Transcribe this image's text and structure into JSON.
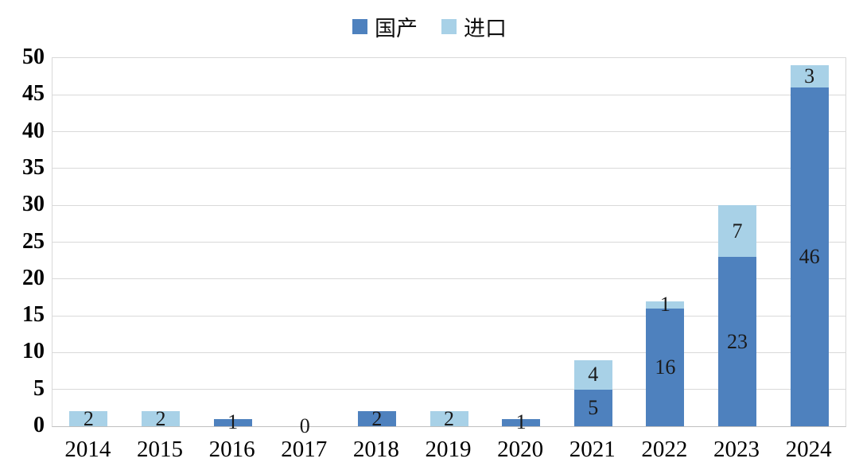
{
  "chart_data": {
    "type": "bar",
    "stacked": true,
    "title": "",
    "xlabel": "",
    "ylabel": "",
    "categories": [
      "2014",
      "2015",
      "2016",
      "2017",
      "2018",
      "2019",
      "2020",
      "2021",
      "2022",
      "2023",
      "2024"
    ],
    "series": [
      {
        "id": "domestic",
        "name": "国产",
        "color": "#4E81BE",
        "values": [
          0,
          0,
          1,
          0,
          2,
          0,
          1,
          5,
          16,
          23,
          46
        ]
      },
      {
        "id": "import",
        "name": "进口",
        "color": "#A8D1E7",
        "values": [
          2,
          2,
          0,
          0,
          0,
          2,
          0,
          4,
          1,
          7,
          3
        ]
      }
    ],
    "totals": [
      2,
      2,
      1,
      0,
      2,
      2,
      1,
      9,
      17,
      30,
      49
    ],
    "data_labels_shown": true,
    "zero_total_label": "0",
    "ylim": [
      0,
      50
    ],
    "yticks": [
      0,
      5,
      10,
      15,
      20,
      25,
      30,
      35,
      40,
      45,
      50
    ],
    "grid": true,
    "gridline_color": "#d9d9d9",
    "axis_line_color": "#bfbfbf",
    "label_color": "#1a1a1a",
    "legend_position": "top-center"
  }
}
